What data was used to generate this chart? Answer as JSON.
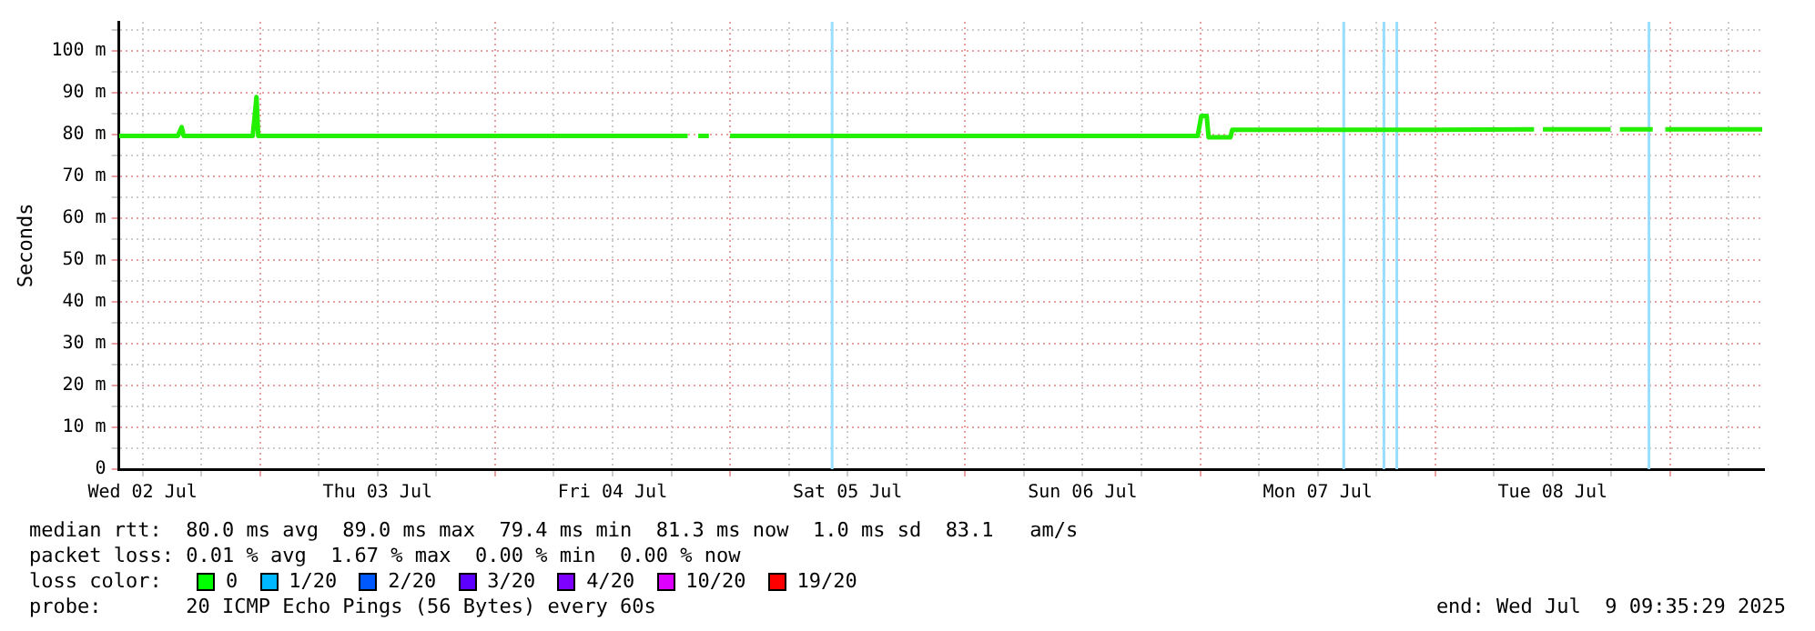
{
  "chart_data": {
    "type": "line",
    "ylabel": "Seconds",
    "xlim": [
      "2025-07-02T09:35",
      "2025-07-09T09:35"
    ],
    "xticks": [
      {
        "value": "2025-07-02T12:00",
        "label": "Wed 02 Jul"
      },
      {
        "value": "2025-07-02T18:00",
        "label": null
      },
      {
        "value": "2025-07-03T00:00",
        "label": null
      },
      {
        "value": "2025-07-03T06:00",
        "label": null
      },
      {
        "value": "2025-07-03T12:00",
        "label": "Thu 03 Jul"
      },
      {
        "value": "2025-07-03T18:00",
        "label": null
      },
      {
        "value": "2025-07-04T00:00",
        "label": null
      },
      {
        "value": "2025-07-04T06:00",
        "label": null
      },
      {
        "value": "2025-07-04T12:00",
        "label": "Fri 04 Jul"
      },
      {
        "value": "2025-07-04T18:00",
        "label": null
      },
      {
        "value": "2025-07-05T00:00",
        "label": null
      },
      {
        "value": "2025-07-05T06:00",
        "label": null
      },
      {
        "value": "2025-07-05T12:00",
        "label": "Sat 05 Jul"
      },
      {
        "value": "2025-07-05T18:00",
        "label": null
      },
      {
        "value": "2025-07-06T00:00",
        "label": null
      },
      {
        "value": "2025-07-06T06:00",
        "label": null
      },
      {
        "value": "2025-07-06T12:00",
        "label": "Sun 06 Jul"
      },
      {
        "value": "2025-07-06T18:00",
        "label": null
      },
      {
        "value": "2025-07-07T00:00",
        "label": null
      },
      {
        "value": "2025-07-07T06:00",
        "label": null
      },
      {
        "value": "2025-07-07T12:00",
        "label": "Mon 07 Jul"
      },
      {
        "value": "2025-07-07T18:00",
        "label": null
      },
      {
        "value": "2025-07-08T00:00",
        "label": null
      },
      {
        "value": "2025-07-08T06:00",
        "label": null
      },
      {
        "value": "2025-07-08T12:00",
        "label": "Tue 08 Jul"
      },
      {
        "value": "2025-07-08T18:00",
        "label": null
      },
      {
        "value": "2025-07-09T00:00",
        "label": null
      },
      {
        "value": "2025-07-09T06:00",
        "label": null
      }
    ],
    "ylim": [
      0,
      107
    ],
    "yticks": [
      0,
      {
        "value": 5,
        "label": null
      },
      {
        "value": 10,
        "label": "10 m"
      },
      {
        "value": 15,
        "label": null
      },
      {
        "value": 20,
        "label": "20 m"
      },
      {
        "value": 25,
        "label": null
      },
      {
        "value": 30,
        "label": "30 m"
      },
      {
        "value": 35,
        "label": null
      },
      {
        "value": 40,
        "label": "40 m"
      },
      {
        "value": 45,
        "label": null
      },
      {
        "value": 50,
        "label": "50 m"
      },
      {
        "value": 55,
        "label": null
      },
      {
        "value": 60,
        "label": "60 m"
      },
      {
        "value": 65,
        "label": null
      },
      {
        "value": 70,
        "label": "70 m"
      },
      {
        "value": 75,
        "label": null
      },
      {
        "value": 80,
        "label": "80 m"
      },
      {
        "value": 85,
        "label": null
      },
      {
        "value": 90,
        "label": "90 m"
      },
      {
        "value": 95,
        "label": null
      },
      {
        "value": 100,
        "label": "100 m"
      },
      {
        "value": 105,
        "label": null
      }
    ],
    "grid": true,
    "line_style": "solid",
    "marker": "none",
    "series": [
      {
        "color": "#22f000",
        "x": [
          "2025-07-02T09:35",
          "2025-07-02T15:36",
          "2025-07-02T16:00",
          "2025-07-02T16:12",
          "2025-07-02T23:15",
          "2025-07-02T23:26",
          "2025-07-02T23:38",
          "2025-07-02T23:49",
          "2025-07-04T19:40",
          "2025-07-04T19:50",
          "2025-07-04T20:45",
          "2025-07-04T21:50",
          "2025-07-04T22:30",
          "2025-07-05T00:00",
          "2025-07-06T23:45",
          "2025-07-07T00:07",
          "2025-07-07T00:40",
          "2025-07-07T00:52",
          "2025-07-07T03:06",
          "2025-07-07T03:17",
          "2025-07-07T23:26",
          "2025-07-08T10:06",
          "2025-07-08T10:30",
          "2025-07-08T11:00",
          "2025-07-08T17:55",
          "2025-07-08T18:20",
          "2025-07-08T18:52",
          "2025-07-08T22:13",
          "2025-07-08T22:50",
          "2025-07-08T23:30",
          "2025-07-09T09:24"
        ],
        "values": [
          79.7,
          79.7,
          81.8,
          79.7,
          79.7,
          84,
          89,
          79.7,
          79.7,
          null,
          79.7,
          79.7,
          null,
          79.7,
          79.7,
          84.5,
          84.5,
          79.4,
          79.4,
          81.2,
          81.2,
          81.3,
          null,
          81.3,
          81.3,
          null,
          81.3,
          81.3,
          null,
          81.3,
          81.3
        ]
      }
    ],
    "ref_lines": [
      {
        "axis": "x",
        "value": "2025-07-05T10:25",
        "color": "#99ddff"
      },
      {
        "axis": "x",
        "value": "2025-07-07T14:40",
        "color": "#99ddff"
      },
      {
        "axis": "x",
        "value": "2025-07-07T18:46",
        "color": "#99ddff"
      },
      {
        "axis": "x",
        "value": "2025-07-07T20:05",
        "color": "#99ddff"
      },
      {
        "axis": "x",
        "value": "2025-07-08T21:50",
        "color": "#99ddff"
      }
    ],
    "annotations": [
      "median rtt:  80.0 ms avg  89.0 ms max  79.4 ms min  81.3 ms now  1.0 ms sd  83.1   am/s",
      "packet loss: 0.01 % avg  1.67 % max  0.00 % min  0.00 % now",
      "loss color:",
      "0",
      "1/20",
      "2/20",
      "3/20",
      "4/20",
      "10/20",
      "19/20",
      "probe:       20 ICMP Echo Pings (56 Bytes) every 60s",
      "end: Wed Jul  9 09:35:29 2025"
    ]
  }
}
